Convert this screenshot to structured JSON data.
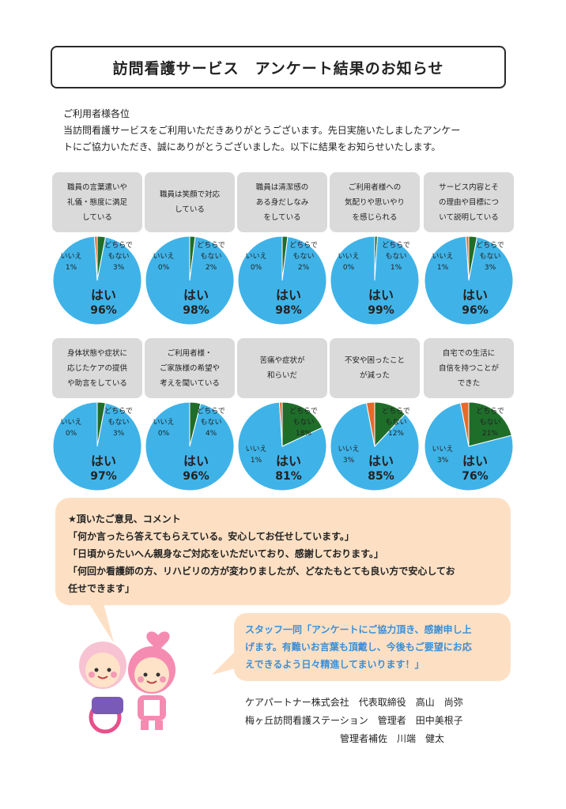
{
  "title": "訪問看護サービス　アンケート結果のお知らせ",
  "intro": {
    "salutation": "ご利用者様各位",
    "body1": "当訪問看護サービスをご利用いただきありがとうございます。先日実施いたしましたアンケー",
    "body2": "トにご協力いただき、誠にありがとうございました。以下に結果をお知らせいたします。"
  },
  "colors": {
    "yes": "#3fb3e8",
    "maybe": "#1e6e2a",
    "no": "#e66a2c",
    "label_bg": "#dadada",
    "comment_bg": "#fde0c4",
    "staff_text": "#3a8fd8"
  },
  "chart_data": [
    {
      "type": "pie",
      "title": "職員の言葉遣いや\n礼儀・態度に満足\nしている",
      "labels": [
        "はい",
        "どちらでもない",
        "いいえ"
      ],
      "values": [
        96,
        3,
        1
      ],
      "display": [
        "96%",
        "3%",
        "1%"
      ]
    },
    {
      "type": "pie",
      "title": "職員は笑顔で対応\nしている",
      "labels": [
        "はい",
        "どちらでもない",
        "いいえ"
      ],
      "values": [
        98,
        2,
        0
      ],
      "display": [
        "98%",
        "2%",
        "0%"
      ]
    },
    {
      "type": "pie",
      "title": "職員は清潔感の\nある身だしなみ\nをしている",
      "labels": [
        "はい",
        "どちらでもない",
        "いいえ"
      ],
      "values": [
        98,
        2,
        0
      ],
      "display": [
        "98%",
        "2%",
        "0%"
      ]
    },
    {
      "type": "pie",
      "title": "ご利用者様への\n気配りや思いやり\nを感じられる",
      "labels": [
        "はい",
        "どちらでもない",
        "いいえ"
      ],
      "values": [
        99,
        1,
        0
      ],
      "display": [
        "99%",
        "1%",
        "0%"
      ]
    },
    {
      "type": "pie",
      "title": "サービス内容とそ\nの理由や目標につ\nいて説明している",
      "labels": [
        "はい",
        "どちらでもない",
        "いいえ"
      ],
      "values": [
        96,
        3,
        1
      ],
      "display": [
        "96%",
        "3%",
        "1%"
      ]
    },
    {
      "type": "pie",
      "title": "身体状態や症状に\n応じたケアの提供\nや助言をしている",
      "labels": [
        "はい",
        "どちらでもない",
        "いいえ"
      ],
      "values": [
        97,
        3,
        0
      ],
      "display": [
        "97%",
        "3%",
        "0%"
      ]
    },
    {
      "type": "pie",
      "title": "ご利用者様・\nご家族様の希望や\n考えを聞いている",
      "labels": [
        "はい",
        "どちらでもない",
        "いいえ"
      ],
      "values": [
        96,
        4,
        0
      ],
      "display": [
        "96%",
        "4%",
        "0%"
      ]
    },
    {
      "type": "pie",
      "title": "苦痛や症状が\n和らいだ",
      "labels": [
        "はい",
        "どちらでもない",
        "いいえ"
      ],
      "values": [
        81,
        18,
        1
      ],
      "display": [
        "81%",
        "18%",
        "1%"
      ]
    },
    {
      "type": "pie",
      "title": "不安や困ったこと\nが減った",
      "labels": [
        "はい",
        "どちらでもない",
        "いいえ"
      ],
      "values": [
        85,
        12,
        3
      ],
      "display": [
        "85%",
        "12%",
        "3%"
      ]
    },
    {
      "type": "pie",
      "title": "自宅での生活に\n自信を持つことが\nできた",
      "labels": [
        "はい",
        "どちらでもない",
        "いいえ"
      ],
      "values": [
        76,
        21,
        3
      ],
      "display": [
        "76%",
        "21%",
        "3%"
      ]
    }
  ],
  "comments": {
    "heading": "★頂いたご意見、コメント",
    "c1": "「何か言ったら答えてもらえている。安心してお任せしています。」",
    "c2": "「日頃からたいへん親身なご対応をいただいており、感謝しております。」",
    "c3a": "「何回か看護師の方、リハビリの方が変わりましたが、どなたもとても良い方で安心してお",
    "c3b": "任せできます」"
  },
  "staff": {
    "l1": "スタッフ一同「アンケートにご協力頂き、感謝申し上",
    "l2": "げます。有難いお言葉も頂戴し、今後もご要望にお応",
    "l3": "えできるよう日々精進してまいります！」"
  },
  "signature": {
    "s1": "ケアパートナー株式会社　代表取締役　高山　尚弥",
    "s2": "梅ヶ丘訪問看護ステーション　管理者　田中美根子",
    "s3": "　　　　　　　　　　管理者補佐　川端　健太"
  }
}
